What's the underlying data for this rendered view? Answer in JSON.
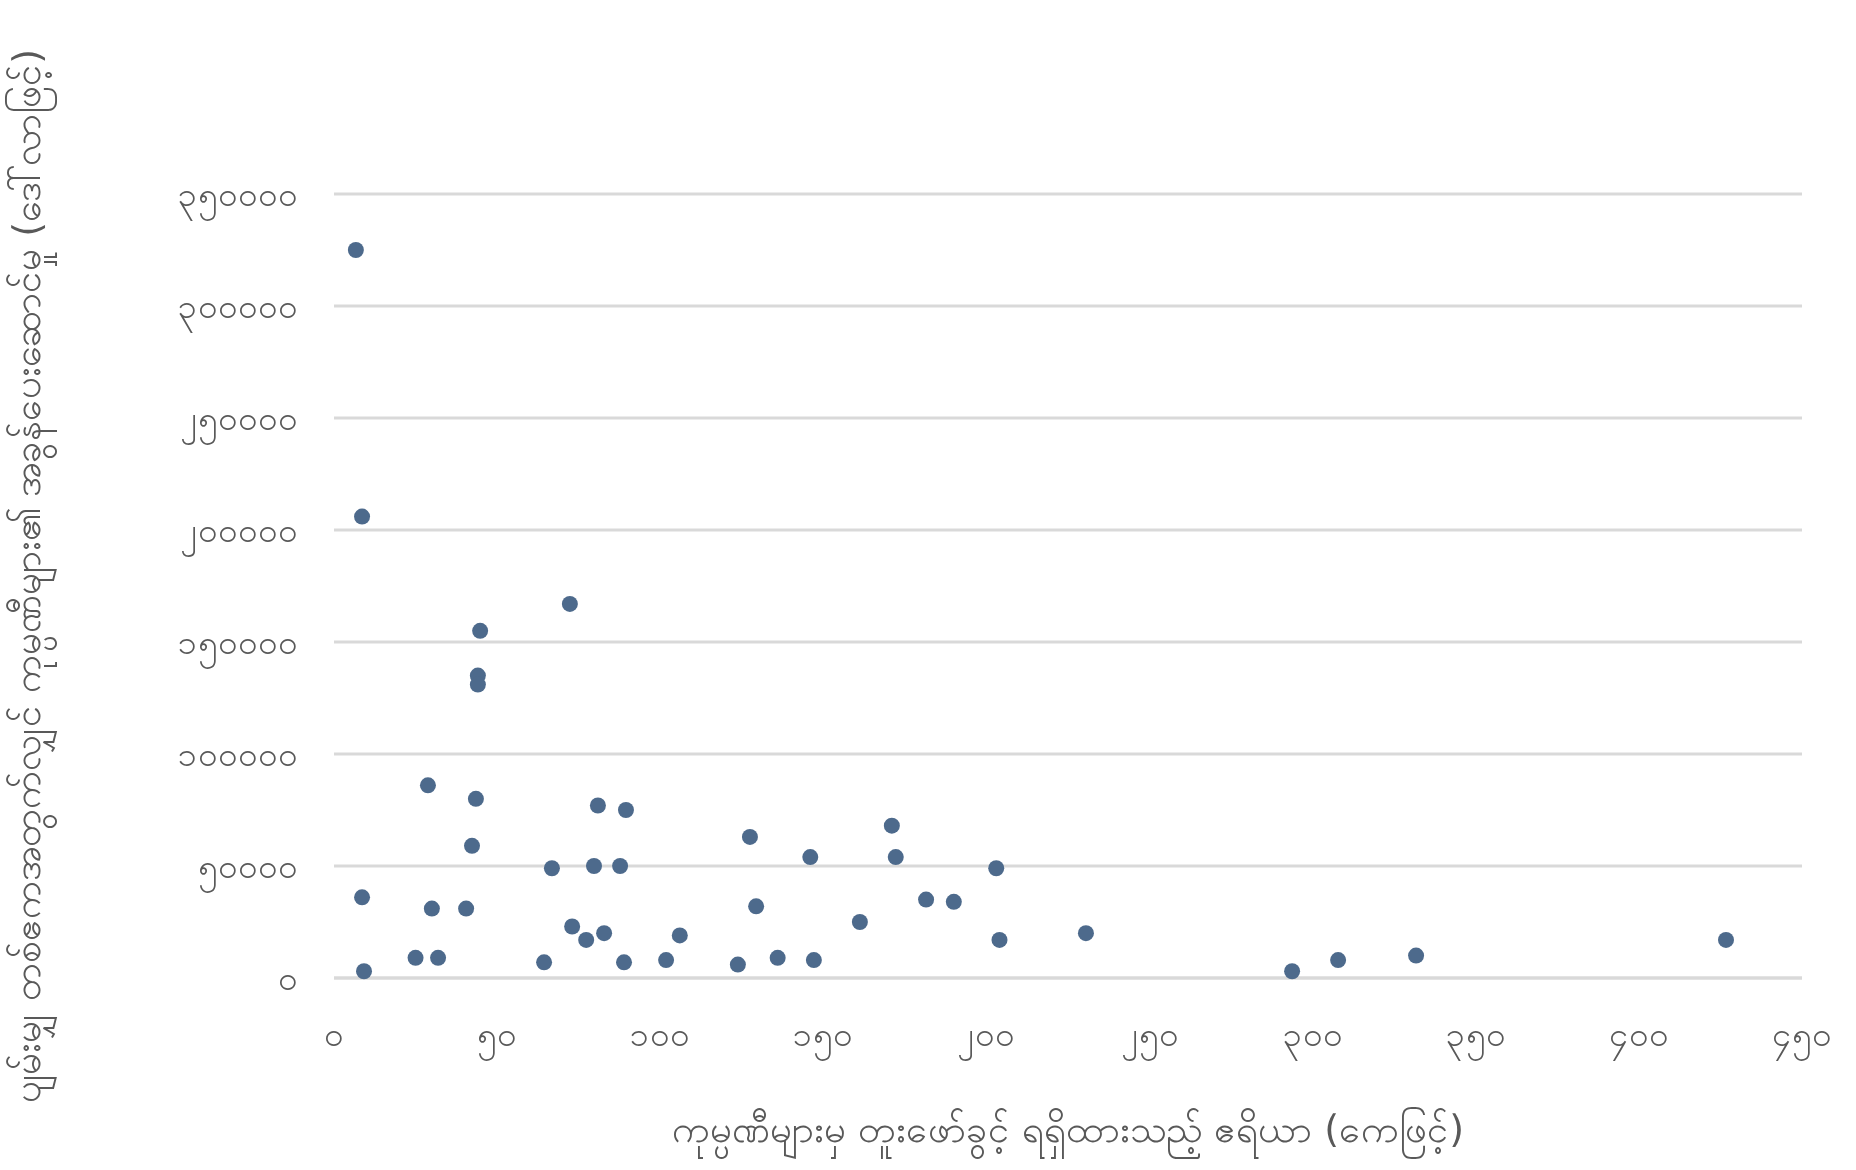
{
  "chart_data": {
    "type": "scatter",
    "xlabel": "ကုမ္ပဏီများမှ တူးဖော်ခွင့် ရရှိထားသည့် ဧရိယာ (ကေဖြင့်)",
    "ylabel": "ပျမ်းမျှ တစ်ဧကအတွက်လျှင် ကုမ္ပဏီများ၏ အခွန်ပေးဆောင်မှု (ဒေါ်လာဖြင့်)",
    "xlim": [
      0,
      450
    ],
    "xticks": [
      {
        "value": 0,
        "label": "၀"
      },
      {
        "value": 50,
        "label": "၅၀"
      },
      {
        "value": 100,
        "label": "၁၀၀"
      },
      {
        "value": 150,
        "label": "၁၅၀"
      },
      {
        "value": 200,
        "label": "၂၀၀"
      },
      {
        "value": 250,
        "label": "၂၅၀"
      },
      {
        "value": 300,
        "label": "၃၀၀"
      },
      {
        "value": 350,
        "label": "၃၅၀"
      },
      {
        "value": 400,
        "label": "၄၀၀"
      },
      {
        "value": 450,
        "label": "၄၅၀"
      }
    ],
    "ylim": [
      0,
      350000
    ],
    "yticks": [
      {
        "value": 0,
        "label": "၀"
      },
      {
        "value": 50000,
        "label": "၅၀၀၀၀"
      },
      {
        "value": 100000,
        "label": "၁၀၀၀၀၀"
      },
      {
        "value": 150000,
        "label": "၁၅၀၀၀၀"
      },
      {
        "value": 200000,
        "label": "၂၀၀၀၀၀"
      },
      {
        "value": 250000,
        "label": "၂၅၀၀၀၀"
      },
      {
        "value": 300000,
        "label": "၃၀၀၀၀၀"
      },
      {
        "value": 350000,
        "label": "၃၅၀၀၀၀"
      }
    ],
    "grid": "y",
    "marker": "circle",
    "series": [
      {
        "color": "#4d6a8c",
        "x": [
          6.7,
          8.6,
          8.6,
          9.2,
          28.8,
          30,
          25,
          31.9,
          40.5,
          42.3,
          43.5,
          44.8,
          44.1,
          44.1,
          64.4,
          66.8,
          72.3,
          73,
          77.3,
          79.7,
          80.9,
          82.8,
          87.7,
          89.5,
          88.9,
          101.8,
          106,
          123.8,
          127.5,
          129.4,
          136,
          146,
          147.1,
          161.2,
          171,
          172.2,
          181.5,
          190,
          203,
          204,
          230.5,
          293.7,
          307.8,
          331.7,
          426.7
        ],
        "values": [
          325000,
          206000,
          36000,
          3000,
          86000,
          31000,
          9000,
          9000,
          31000,
          59000,
          80000,
          155000,
          135000,
          131000,
          7000,
          49000,
          167000,
          23000,
          17000,
          50000,
          77000,
          20000,
          50000,
          75000,
          7000,
          8000,
          19000,
          6000,
          63000,
          32000,
          9000,
          54000,
          8000,
          25000,
          68000,
          54000,
          35000,
          34000,
          49000,
          17000,
          20000,
          3000,
          8000,
          10000,
          17000
        ]
      }
    ]
  }
}
